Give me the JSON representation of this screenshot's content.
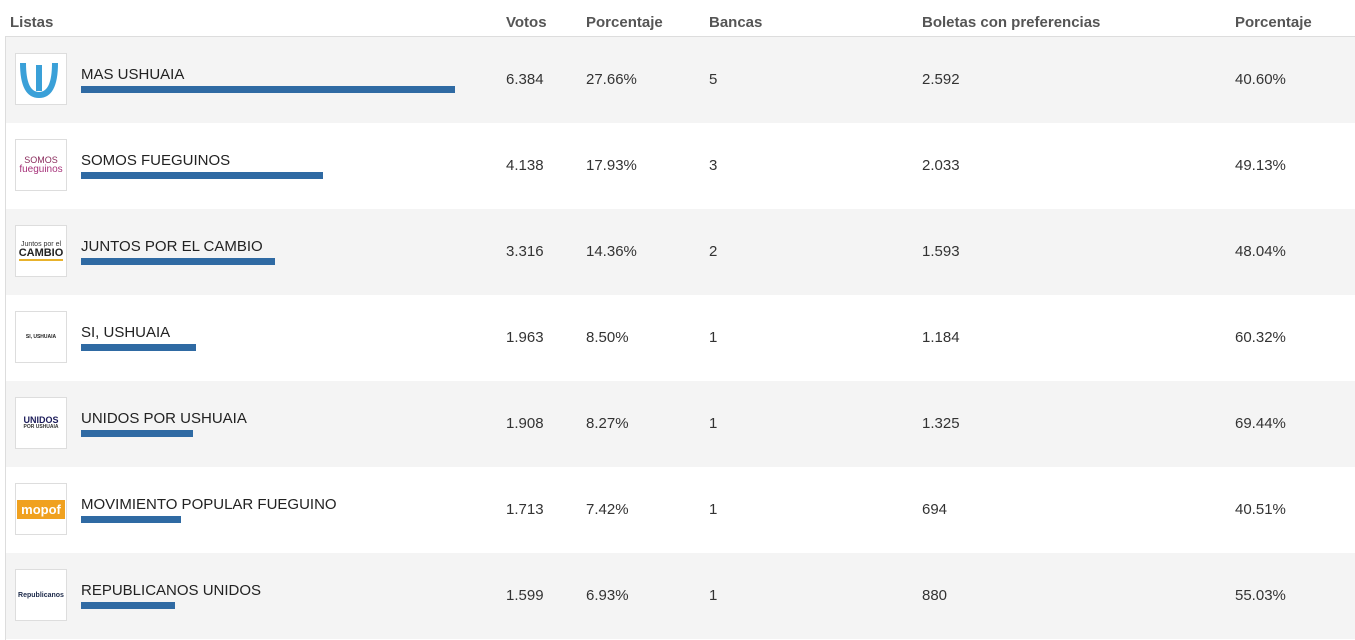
{
  "header": {
    "listas": "Listas",
    "votos": "Votos",
    "porcentaje": "Porcentaje",
    "bancas": "Bancas",
    "boletas": "Boletas con preferencias",
    "porcentaje_preferencias": "Porcentaje"
  },
  "table": {
    "rows": [
      {
        "name": "MAS USHUAIA",
        "votos": "6.384",
        "porcentaje": {
          "value": 27.66,
          "label": "27.66%"
        },
        "bancas": "5",
        "boletas": "2.592",
        "porcentaje_preferencias": "40.60%"
      },
      {
        "name": "SOMOS FUEGUINOS",
        "logo": [
          "SOMOS",
          "fueguinos"
        ],
        "votos": "4.138",
        "porcentaje": {
          "value": 17.93,
          "label": "17.93%"
        },
        "bancas": "3",
        "boletas": "2.033",
        "porcentaje_preferencias": "49.13%"
      },
      {
        "name": "JUNTOS POR EL CAMBIO",
        "logo": [
          "Juntos por el",
          "CAMBIO"
        ],
        "votos": "3.316",
        "porcentaje": {
          "value": 14.36,
          "label": "14.36%"
        },
        "bancas": "2",
        "boletas": "1.593",
        "porcentaje_preferencias": "48.04%"
      },
      {
        "name": "SI, USHUAIA",
        "logo": [
          "SI, USHUAIA"
        ],
        "votos": "1.963",
        "porcentaje": {
          "value": 8.5,
          "label": "8.50%"
        },
        "bancas": "1",
        "boletas": "1.184",
        "porcentaje_preferencias": "60.32%"
      },
      {
        "name": "UNIDOS POR USHUAIA",
        "logo": [
          "UNIDOS",
          "POR USHUAIA"
        ],
        "votos": "1.908",
        "porcentaje": {
          "value": 8.27,
          "label": "8.27%"
        },
        "bancas": "1",
        "boletas": "1.325",
        "porcentaje_preferencias": "69.44%"
      },
      {
        "name": "MOVIMIENTO POPULAR FUEGUINO",
        "logo": [
          "mopof"
        ],
        "votos": "1.713",
        "porcentaje": {
          "value": 7.42,
          "label": "7.42%"
        },
        "bancas": "1",
        "boletas": "694",
        "porcentaje_preferencias": "40.51%"
      },
      {
        "name": "REPUBLICANOS UNIDOS",
        "logo": [
          "Republicanos"
        ],
        "votos": "1.599",
        "porcentaje": {
          "value": 6.93,
          "label": "6.93%"
        },
        "bancas": "1",
        "boletas": "880",
        "porcentaje_preferencias": "55.03%"
      }
    ]
  }
}
